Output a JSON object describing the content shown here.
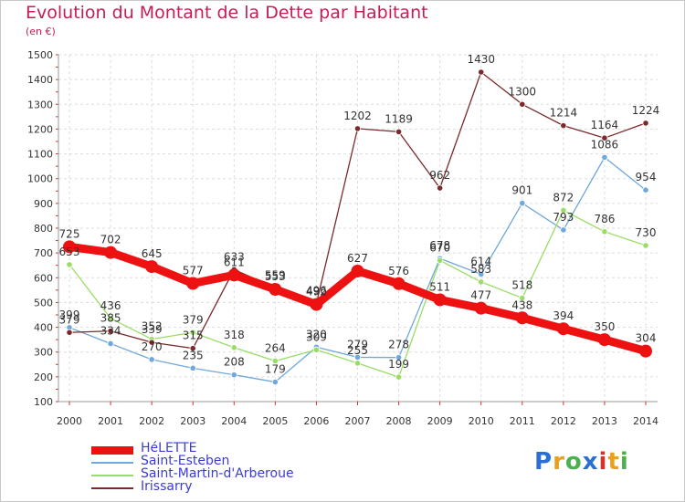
{
  "header": {
    "title": "Evolution du Montant de la Dette par Habitant",
    "subtitle": "(en €)"
  },
  "logo": {
    "text": "Proxiti",
    "colors": [
      "#2a6fd6",
      "#e8a020",
      "#4caf50",
      "#2a6fd6",
      "#d6322a",
      "#e8a020",
      "#4caf50"
    ]
  },
  "chart_data": {
    "type": "line",
    "x": [
      2000,
      2001,
      2002,
      2003,
      2004,
      2005,
      2006,
      2007,
      2008,
      2009,
      2010,
      2011,
      2012,
      2013,
      2014
    ],
    "ylim": [
      100,
      1500
    ],
    "yticks": [
      100,
      200,
      300,
      400,
      500,
      600,
      700,
      800,
      900,
      1000,
      1100,
      1200,
      1300,
      1400,
      1500
    ],
    "grid": true,
    "legend_position": "bottom-left",
    "series": [
      {
        "name": "HéLETTE",
        "color": "#ee1111",
        "values": [
          725,
          702,
          645,
          577,
          611,
          553,
          492,
          627,
          576,
          511,
          477,
          438,
          394,
          350,
          304
        ]
      },
      {
        "name": "Saint-Esteben",
        "color": "#6fa8dc",
        "values": [
          399,
          334,
          270,
          235,
          208,
          179,
          320,
          279,
          278,
          678,
          614,
          901,
          793,
          1086,
          954
        ]
      },
      {
        "name": "Saint-Martin-d'Arberoue",
        "color": "#99dd66",
        "values": [
          653,
          436,
          352,
          379,
          318,
          264,
          309,
          255,
          199,
          670,
          583,
          518,
          872,
          786,
          730
        ]
      },
      {
        "name": "Irissarry",
        "color": "#7a2a2a",
        "values": [
          379,
          385,
          339,
          315,
          633,
          559,
          496,
          1202,
          1189,
          962,
          1430,
          1300,
          1214,
          1164,
          1224
        ]
      }
    ]
  }
}
